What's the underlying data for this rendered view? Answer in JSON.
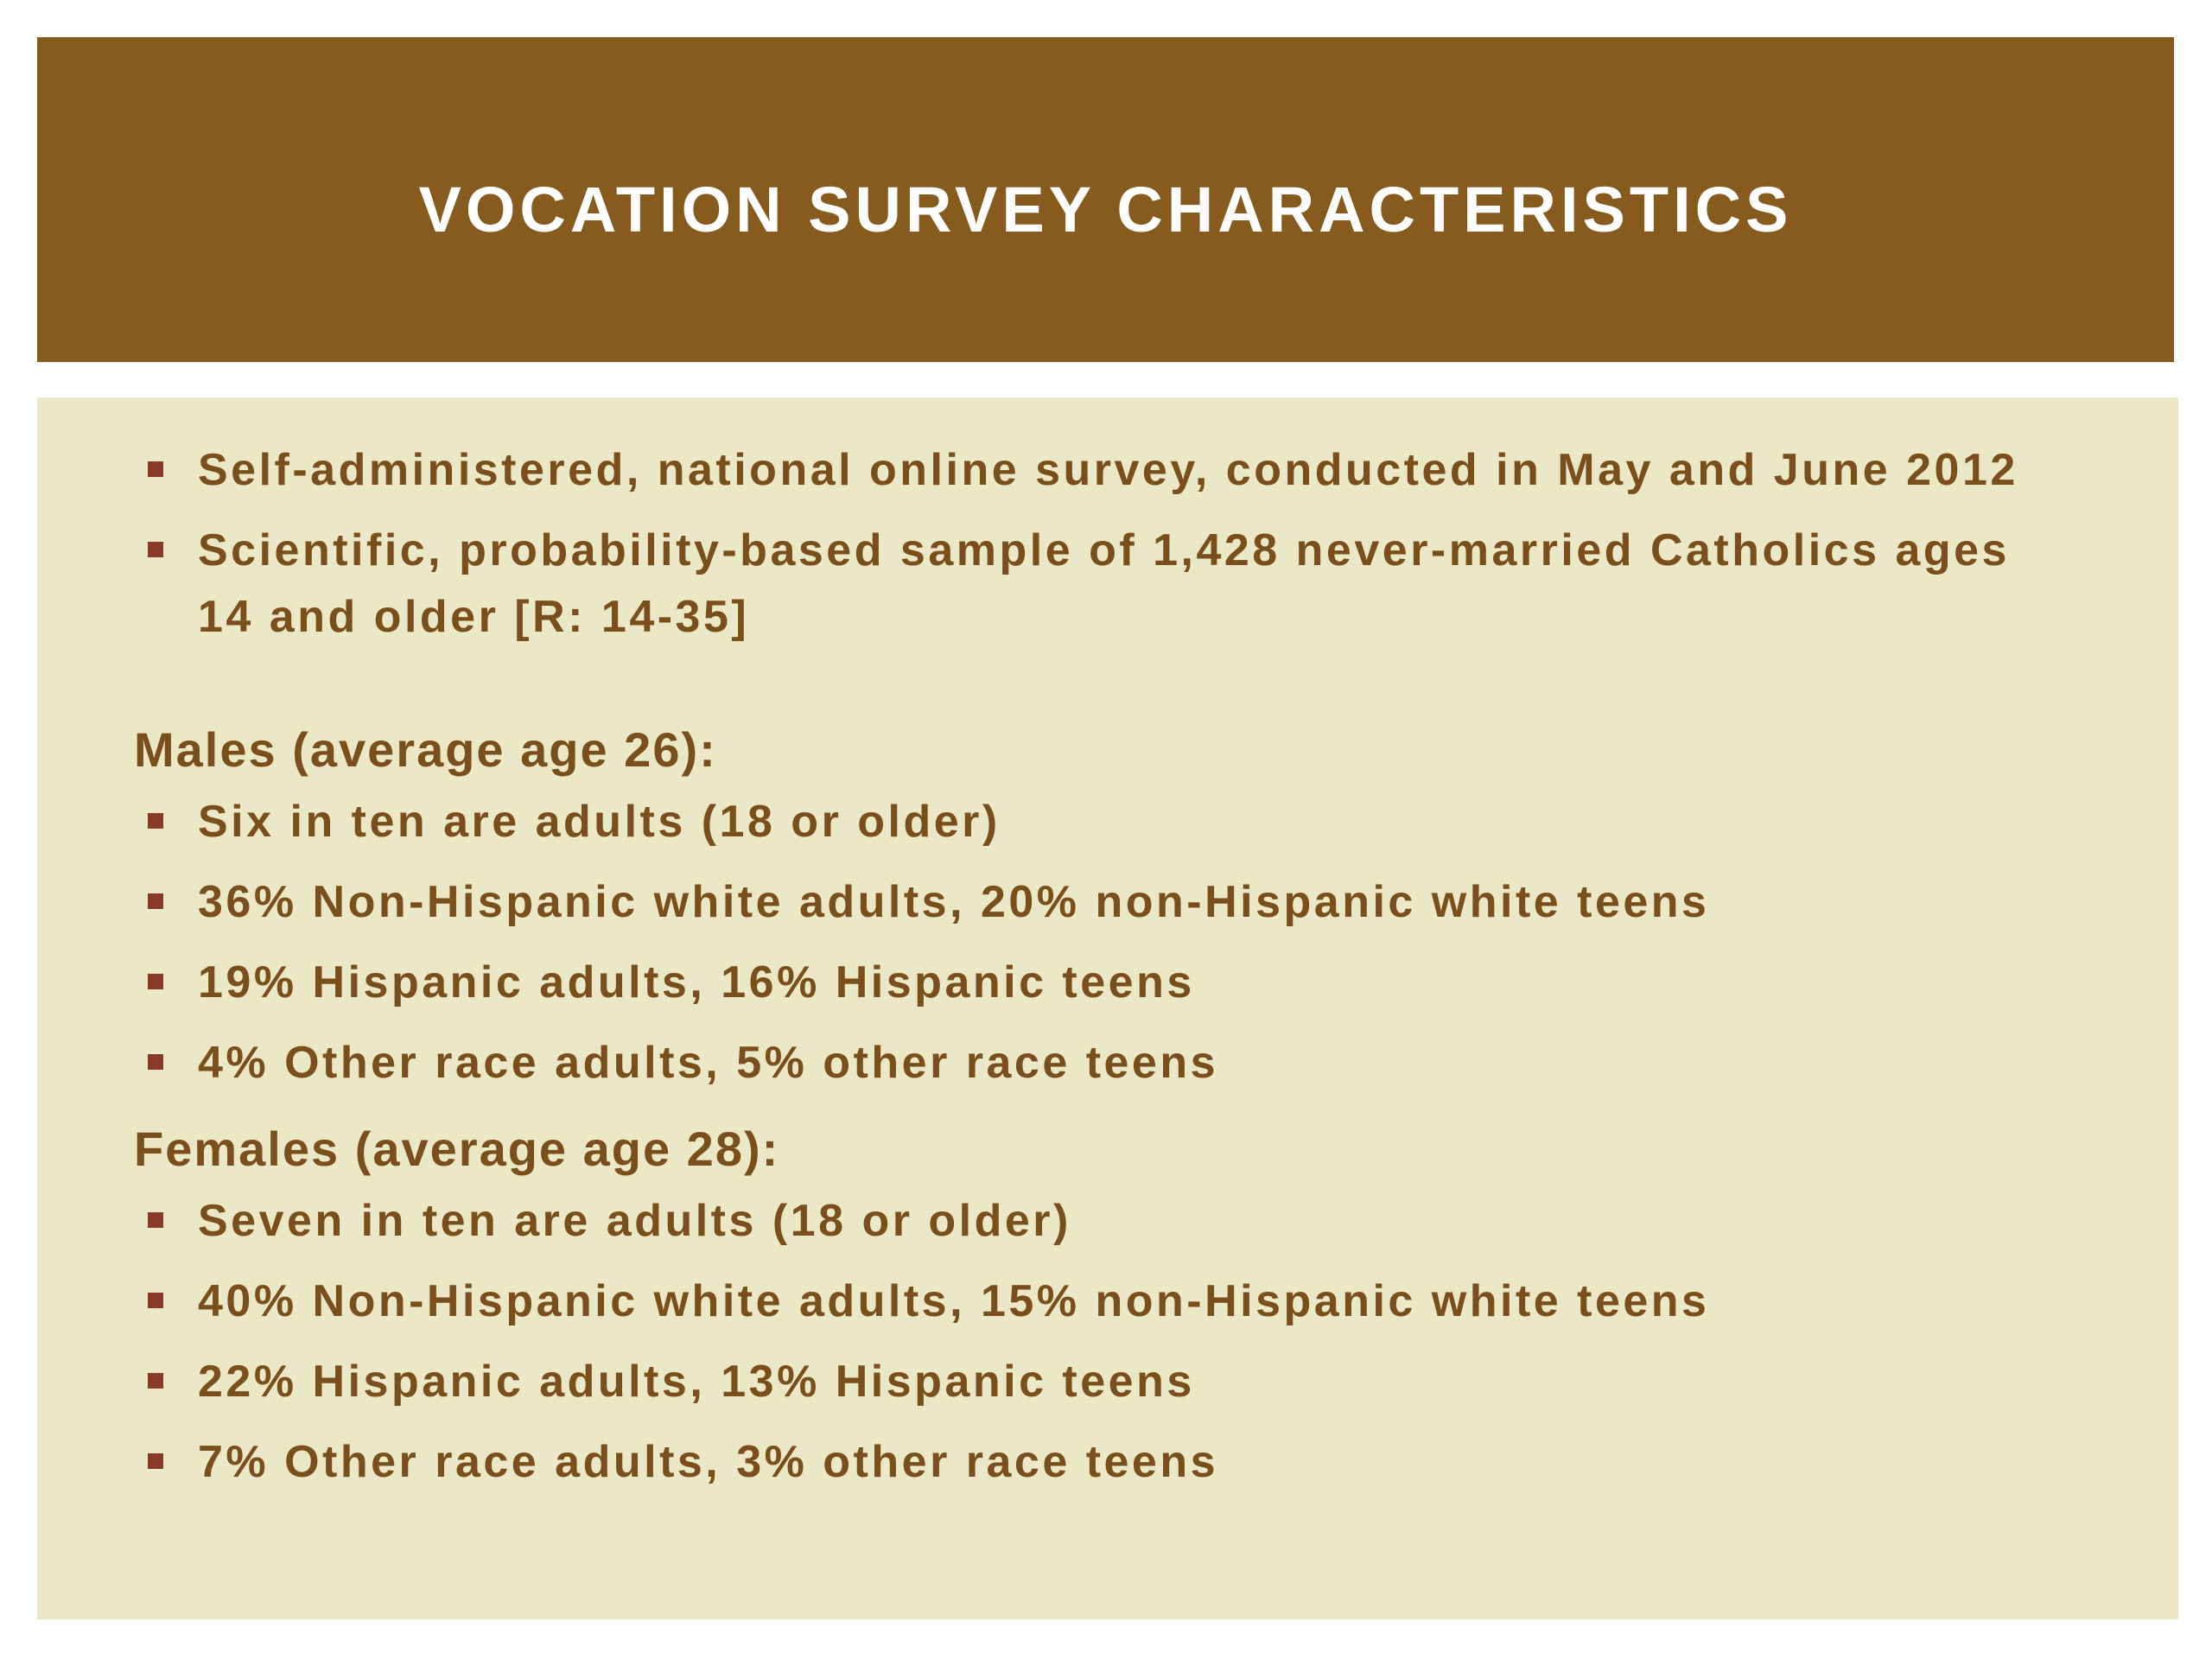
{
  "header": {
    "title": "VOCATION SURVEY CHARACTERISTICS"
  },
  "intro": [
    "Self-administered, national online survey, conducted in May and June 2012",
    "Scientific, probability-based sample of 1,428 never-married Catholics ages 14 and older [R: 14-35]"
  ],
  "groups": [
    {
      "heading": "Males (average age 26):",
      "bullets": [
        "Six in ten are adults (18 or older)",
        "36% Non-Hispanic white adults, 20% non-Hispanic white teens",
        "19% Hispanic adults, 16% Hispanic teens",
        "4% Other race adults, 5% other race teens"
      ]
    },
    {
      "heading": "Females (average age 28):",
      "bullets": [
        "Seven in ten are adults (18 or older)",
        "40% Non-Hispanic white adults, 15% non-Hispanic white teens",
        "22% Hispanic adults, 13% Hispanic teens",
        "7% Other race adults, 3% other race teens"
      ]
    }
  ]
}
